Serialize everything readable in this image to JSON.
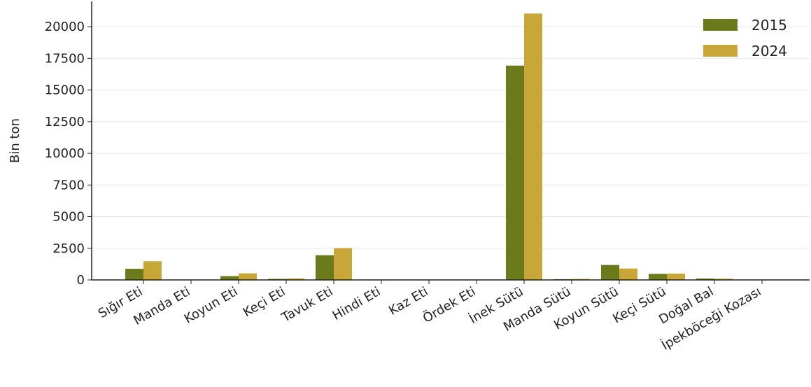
{
  "chart_data": {
    "type": "bar",
    "ylabel": "Bin ton",
    "ylim": [
      0,
      22000
    ],
    "yticks": [
      0,
      2500,
      5000,
      7500,
      10000,
      12500,
      15000,
      17500,
      20000
    ],
    "grid": "horizontal",
    "legend_position": "top-right",
    "categories": [
      "Sığır Eti",
      "Manda Eti",
      "Koyun Eti",
      "Keçi Eti",
      "Tavuk Eti",
      "Hindi Eti",
      "Kaz Eti",
      "Ördek Eti",
      "İnek Sütü",
      "Manda Sütü",
      "Koyun Sütü",
      "Keçi Sütü",
      "Doğal Bal",
      "İpekböceği Kozası"
    ],
    "series": [
      {
        "name": "2015",
        "color": "#6b7a1a",
        "values": [
          880,
          10,
          300,
          80,
          1950,
          10,
          5,
          5,
          16930,
          60,
          1180,
          480,
          110,
          0
        ]
      },
      {
        "name": "2024",
        "color": "#c8a637",
        "values": [
          1480,
          12,
          520,
          120,
          2510,
          10,
          5,
          5,
          21040,
          80,
          900,
          500,
          100,
          0
        ]
      }
    ]
  }
}
